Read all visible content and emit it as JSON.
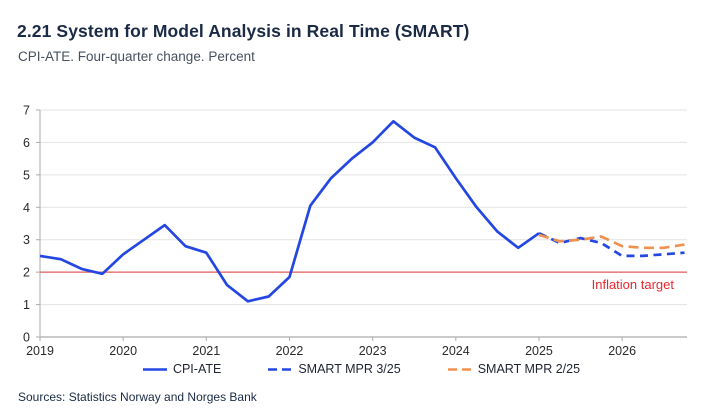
{
  "header": {
    "title": "2.21 System for Model Analysis in Real Time (SMART)",
    "subtitle": "CPI-ATE. Four-quarter change. Percent"
  },
  "footer": {
    "sources": "Sources: Statistics Norway and Norges Bank"
  },
  "chart_data": {
    "type": "line",
    "title": "2.21 System for Model Analysis in Real Time (SMART)",
    "subtitle": "CPI-ATE. Four-quarter change. Percent",
    "ylabel": "",
    "xlabel": "",
    "ylim": [
      0,
      7
    ],
    "x_range": [
      2019,
      2026.78
    ],
    "y_ticks": [
      0,
      1,
      2,
      3,
      4,
      5,
      6,
      7
    ],
    "x_ticks": [
      2019,
      2020,
      2021,
      2022,
      2023,
      2024,
      2025,
      2026
    ],
    "grid": "horizontal",
    "legend_position": "bottom",
    "colors": {
      "grid": "#e3e3e3",
      "axis": "#ababab",
      "tick_label": "#2b2b2b"
    },
    "annotation": {
      "label": "Inflation target",
      "y": 2,
      "color": "#e8282f",
      "line_color": "#e25c5c"
    },
    "series": [
      {
        "name": "CPI-ATE",
        "color": "#2447e2",
        "style": "solid",
        "dash": "",
        "x": [
          2019.0,
          2019.25,
          2019.5,
          2019.75,
          2020.0,
          2020.25,
          2020.5,
          2020.75,
          2021.0,
          2021.25,
          2021.5,
          2021.75,
          2022.0,
          2022.25,
          2022.5,
          2022.75,
          2023.0,
          2023.25,
          2023.5,
          2023.75,
          2024.0,
          2024.25,
          2024.5,
          2024.75,
          2025.0
        ],
        "values": [
          2.5,
          2.4,
          2.1,
          1.95,
          2.55,
          3.0,
          3.45,
          2.8,
          2.6,
          1.6,
          1.1,
          1.25,
          1.85,
          4.05,
          4.9,
          5.5,
          6.0,
          6.65,
          6.15,
          5.85,
          4.9,
          4.0,
          3.25,
          2.75,
          3.2
        ]
      },
      {
        "name": "SMART MPR 3/25",
        "color": "#2447e2",
        "style": "dashed",
        "dash": "8 5.5",
        "x": [
          2025.0,
          2025.25,
          2025.5,
          2025.75,
          2026.0,
          2026.25,
          2026.5,
          2026.75
        ],
        "values": [
          3.2,
          2.9,
          3.05,
          2.9,
          2.5,
          2.5,
          2.55,
          2.6
        ]
      },
      {
        "name": "SMART MPR 2/25",
        "color": "#f0914f",
        "style": "dashed",
        "dash": "10 5.5",
        "x": [
          2025.0,
          2025.25,
          2025.5,
          2025.75,
          2026.0,
          2026.25,
          2026.5,
          2026.75
        ],
        "values": [
          3.15,
          2.95,
          3.0,
          3.1,
          2.8,
          2.75,
          2.75,
          2.85
        ]
      }
    ]
  }
}
